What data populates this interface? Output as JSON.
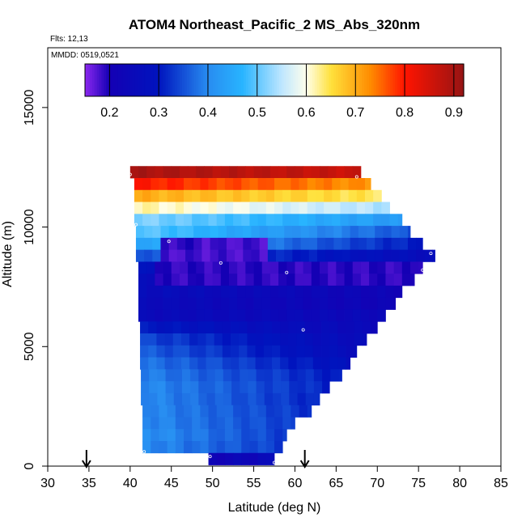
{
  "chart_data": {
    "type": "heatmap",
    "title": "ATOM4 Northeast_Pacific_2 MS_Abs_320nm",
    "flights_label": "Flts: 12,13",
    "dates_label": "MMDD: 0519,0521",
    "xlabel": "Latitude (deg N)",
    "ylabel": "Altitude (m)",
    "xlim": [
      30,
      85
    ],
    "ylim": [
      0,
      17500
    ],
    "x_ticks": [
      "30",
      "35",
      "40",
      "45",
      "50",
      "55",
      "60",
      "65",
      "70",
      "75",
      "80",
      "85"
    ],
    "y_ticks": [
      "0",
      "5000",
      "10000",
      "15000"
    ],
    "colorbar": {
      "range": [
        0.15,
        0.92
      ],
      "ticks": [
        "0.2",
        "0.3",
        "0.4",
        "0.5",
        "0.6",
        "0.7",
        "0.8",
        "0.9"
      ]
    },
    "arrows_latitude": [
      34.7,
      61.2
    ],
    "bands": [
      {
        "alt": 12300,
        "lat_min": 40.0,
        "lat_max": 68.0,
        "v0": 0.9,
        "v1": 0.86
      },
      {
        "alt": 11800,
        "lat_min": 40.5,
        "lat_max": 69.2,
        "v0": 0.8,
        "v1": 0.72
      },
      {
        "alt": 11300,
        "lat_min": 40.5,
        "lat_max": 70.5,
        "v0": 0.7,
        "v1": 0.64
      },
      {
        "alt": 10800,
        "lat_min": 40.5,
        "lat_max": 71.5,
        "v0": 0.62,
        "v1": 0.54
      },
      {
        "alt": 10300,
        "lat_min": 40.5,
        "lat_max": 73.0,
        "v0": 0.52,
        "v1": 0.42
      },
      {
        "alt": 9800,
        "lat_min": 40.7,
        "lat_max": 74.0,
        "v0": 0.5,
        "v1": 0.35
      },
      {
        "alt": 9300,
        "lat_min": 40.7,
        "lat_max": 75.5,
        "v0": 0.45,
        "v1": 0.3
      },
      {
        "alt": 8800,
        "lat_min": 40.7,
        "lat_max": 77.0,
        "v0": 0.36,
        "v1": 0.26
      },
      {
        "alt": 8300,
        "lat_min": 41.0,
        "lat_max": 75.5,
        "v0": 0.3,
        "v1": 0.2
      },
      {
        "alt": 7800,
        "lat_min": 41.0,
        "lat_max": 74.5,
        "v0": 0.27,
        "v1": 0.2
      },
      {
        "alt": 7300,
        "lat_min": 41.0,
        "lat_max": 73.0,
        "v0": 0.26,
        "v1": 0.22
      },
      {
        "alt": 6800,
        "lat_min": 41.0,
        "lat_max": 72.2,
        "v0": 0.25,
        "v1": 0.22
      },
      {
        "alt": 6300,
        "lat_min": 41.0,
        "lat_max": 71.0,
        "v0": 0.25,
        "v1": 0.24
      },
      {
        "alt": 5800,
        "lat_min": 41.2,
        "lat_max": 70.0,
        "v0": 0.3,
        "v1": 0.24
      },
      {
        "alt": 5300,
        "lat_min": 41.2,
        "lat_max": 68.7,
        "v0": 0.34,
        "v1": 0.25
      },
      {
        "alt": 4800,
        "lat_min": 41.2,
        "lat_max": 67.5,
        "v0": 0.36,
        "v1": 0.26
      },
      {
        "alt": 4300,
        "lat_min": 41.2,
        "lat_max": 66.7,
        "v0": 0.38,
        "v1": 0.28
      },
      {
        "alt": 3800,
        "lat_min": 41.3,
        "lat_max": 65.7,
        "v0": 0.39,
        "v1": 0.3
      },
      {
        "alt": 3300,
        "lat_min": 41.3,
        "lat_max": 64.2,
        "v0": 0.4,
        "v1": 0.31
      },
      {
        "alt": 2800,
        "lat_min": 41.3,
        "lat_max": 63.0,
        "v0": 0.4,
        "v1": 0.31
      },
      {
        "alt": 2300,
        "lat_min": 41.5,
        "lat_max": 62.0,
        "v0": 0.4,
        "v1": 0.32
      },
      {
        "alt": 1800,
        "lat_min": 41.5,
        "lat_max": 60.0,
        "v0": 0.4,
        "v1": 0.33
      },
      {
        "alt": 1300,
        "lat_min": 41.5,
        "lat_max": 59.0,
        "v0": 0.41,
        "v1": 0.33
      },
      {
        "alt": 800,
        "lat_min": 41.5,
        "lat_max": 58.5,
        "v0": 0.4,
        "v1": 0.33
      },
      {
        "alt": 300,
        "lat_min": 49.5,
        "lat_max": 57.5,
        "v0": 0.22,
        "v1": 0.25
      }
    ],
    "low_values": [
      {
        "lat_min": 43.0,
        "lat_max": 56.0,
        "alt_min": 8500,
        "alt_max": 9300,
        "value": 0.18
      },
      {
        "lat_min": 43.0,
        "lat_max": 75.0,
        "alt_min": 7700,
        "alt_max": 8300,
        "value": 0.19
      },
      {
        "lat_min": 43.0,
        "lat_max": 48.0,
        "alt_min": 9300,
        "alt_max": 9700,
        "value": 0.19
      }
    ],
    "samples": [
      {
        "lat": 40.0,
        "alt": 12200
      },
      {
        "lat": 67.5,
        "alt": 12100
      },
      {
        "lat": 40.7,
        "alt": 10100
      },
      {
        "lat": 44.7,
        "alt": 9400
      },
      {
        "lat": 51.0,
        "alt": 8500
      },
      {
        "lat": 59.0,
        "alt": 8100
      },
      {
        "lat": 76.5,
        "alt": 8900
      },
      {
        "lat": 75.5,
        "alt": 8200
      },
      {
        "lat": 61.0,
        "alt": 5700
      },
      {
        "lat": 41.7,
        "alt": 600
      },
      {
        "lat": 49.7,
        "alt": 400
      },
      {
        "lat": 57.5,
        "alt": 150
      }
    ]
  }
}
